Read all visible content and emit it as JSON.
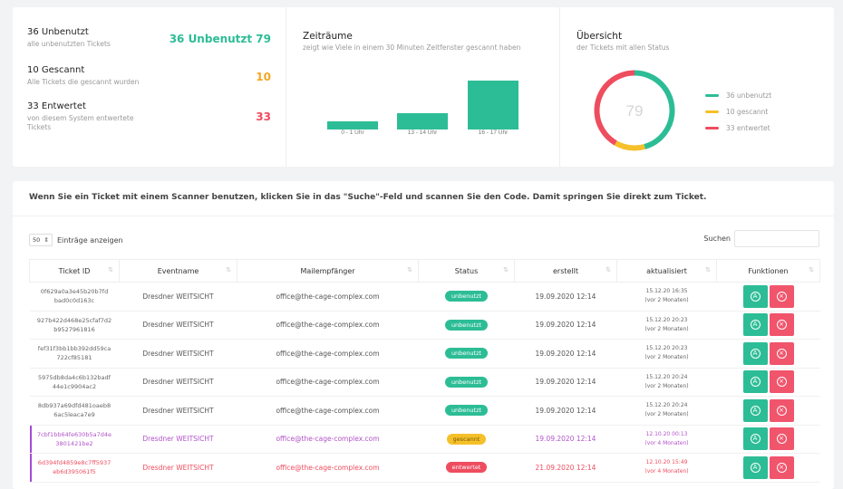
{
  "summary": {
    "unused": {
      "title": "36 Unbenutzt",
      "subtitle": "alle unbenutzten Tickets",
      "value": "36 Unbenutzt 79",
      "color": "#2dbd96"
    },
    "scanned": {
      "title": "10 Gescannt",
      "subtitle": "Alle Tickets die gescannt wurden",
      "value": "10",
      "color": "#f5a623"
    },
    "voided": {
      "title": "33 Entwertet",
      "subtitle": "von diesem System entwertete Tickets",
      "value": "33",
      "color": "#ee4d5f"
    }
  },
  "periods": {
    "title": "Zeiträume",
    "subtitle": "zeigt wie Viele in einem 30 Minuten Zeitfenster gescannt haben"
  },
  "overview": {
    "title": "Übersicht",
    "subtitle": "der Tickets mit allen Status",
    "center_value": "79",
    "legend": [
      {
        "label": "36 unbenutzt",
        "color": "#2dbd96"
      },
      {
        "label": "10 gescannt",
        "color": "#f5c02a"
      },
      {
        "label": "33 entwertet",
        "color": "#ee4d5f"
      }
    ]
  },
  "chart_data": [
    {
      "type": "bar",
      "categories": [
        "0 - 1 Uhr",
        "13 - 14 Uhr",
        "16 - 17 Uhr"
      ],
      "values": [
        1,
        2,
        6
      ],
      "color": "#2dbd96"
    },
    {
      "type": "pie",
      "categories": [
        "unbenutzt",
        "gescannt",
        "entwertet"
      ],
      "values": [
        36,
        10,
        33
      ],
      "colors": [
        "#2dbd96",
        "#f5c02a",
        "#ee4d5f"
      ]
    }
  ],
  "table": {
    "info": "Wenn Sie ein Ticket mit einem Scanner benutzen, klicken Sie in das \"Suche\"-Feld und scannen Sie den Code. Damit springen Sie direkt zum Ticket.",
    "length_value": "50",
    "length_label": "Einträge anzeigen",
    "search_label": "Suchen",
    "columns": [
      "Ticket ID",
      "Eventname",
      "Mailempfänger",
      "Status",
      "erstellt",
      "aktualisiert",
      "Funktionen"
    ],
    "rows": [
      {
        "id1": "0f629a0a3e45b20b7fd",
        "id2": "bad0c0d163c",
        "event": "Dresdner WEITSICHT",
        "mail": "office@the-cage-complex.com",
        "status": "unbenutzt",
        "created": "19.09.2020 12:14",
        "upd1": "15.12.20 16:35",
        "upd2": "(vor 2 Monaten)",
        "kind": "unused"
      },
      {
        "id1": "927b422d468e25cfaf7d2",
        "id2": "b9527961816",
        "event": "Dresdner WEITSICHT",
        "mail": "office@the-cage-complex.com",
        "status": "unbenutzt",
        "created": "19.09.2020 12:14",
        "upd1": "15.12.20 20:23",
        "upd2": "(vor 2 Monaten)",
        "kind": "unused"
      },
      {
        "id1": "fef31f3bb1bb392dd59ca",
        "id2": "722cf85181",
        "event": "Dresdner WEITSICHT",
        "mail": "office@the-cage-complex.com",
        "status": "unbenutzt",
        "created": "19.09.2020 12:14",
        "upd1": "15.12.20 20:23",
        "upd2": "(vor 2 Monaten)",
        "kind": "unused"
      },
      {
        "id1": "5975db8da4c6b132badf",
        "id2": "44e1c9904ac2",
        "event": "Dresdner WEITSICHT",
        "mail": "office@the-cage-complex.com",
        "status": "unbenutzt",
        "created": "19.09.2020 12:14",
        "upd1": "15.12.20 20:24",
        "upd2": "(vor 2 Monaten)",
        "kind": "unused"
      },
      {
        "id1": "8db937a69dfd481oaeb8",
        "id2": "6ac5leaca7e9",
        "event": "Dresdner WEITSICHT",
        "mail": "office@the-cage-complex.com",
        "status": "unbenutzt",
        "created": "19.09.2020 12:14",
        "upd1": "15.12.20 20:24",
        "upd2": "(vor 2 Monaten)",
        "kind": "unused"
      },
      {
        "id1": "7cbf1bb64fe630b5a7d4e",
        "id2": "3801421be2",
        "event": "Dresdner WEITSICHT",
        "mail": "office@the-cage-complex.com",
        "status": "gescannt",
        "created": "19.09.2020 12:14",
        "upd1": "12.10.20 00:13",
        "upd2": "(vor 4 Monaten)",
        "kind": "scanned"
      },
      {
        "id1": "6d394fd4859e8c7ff5937",
        "id2": "eb6d395061f5",
        "event": "Dresdner WEITSICHT",
        "mail": "office@the-cage-complex.com",
        "status": "entwertet",
        "created": "21.09.2020 12:14",
        "upd1": "12.10.20 15:49",
        "upd2": "(vor 4 Monaten)",
        "kind": "voided"
      }
    ],
    "status_colors": {
      "unused": "#2dbd96",
      "scanned": "#f5c02a",
      "voided": "#ee4d5f"
    }
  }
}
